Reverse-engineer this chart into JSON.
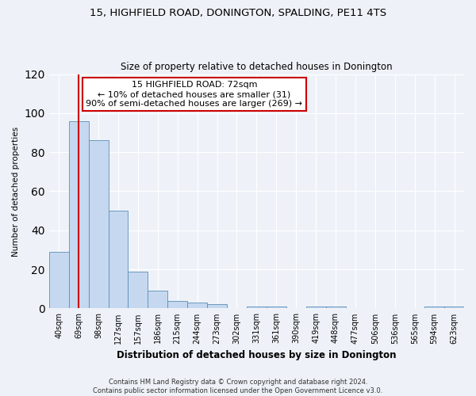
{
  "title1": "15, HIGHFIELD ROAD, DONINGTON, SPALDING, PE11 4TS",
  "title2": "Size of property relative to detached houses in Donington",
  "xlabel": "Distribution of detached houses by size in Donington",
  "ylabel": "Number of detached properties",
  "categories": [
    "40sqm",
    "69sqm",
    "98sqm",
    "127sqm",
    "157sqm",
    "186sqm",
    "215sqm",
    "244sqm",
    "273sqm",
    "302sqm",
    "331sqm",
    "361sqm",
    "390sqm",
    "419sqm",
    "448sqm",
    "477sqm",
    "506sqm",
    "536sqm",
    "565sqm",
    "594sqm",
    "623sqm"
  ],
  "values": [
    29,
    96,
    86,
    50,
    19,
    9,
    4,
    3,
    2,
    0,
    1,
    1,
    0,
    1,
    1,
    0,
    0,
    0,
    0,
    1,
    1
  ],
  "bar_color": "#c5d8f0",
  "bar_edge_color": "#5b8db8",
  "vline_x": 1,
  "vline_color": "#cc0000",
  "annotation_text": "15 HIGHFIELD ROAD: 72sqm\n← 10% of detached houses are smaller (31)\n90% of semi-detached houses are larger (269) →",
  "annotation_box_color": "#ffffff",
  "annotation_box_edge": "#cc0000",
  "ylim": [
    0,
    120
  ],
  "yticks": [
    0,
    20,
    40,
    60,
    80,
    100,
    120
  ],
  "footnote": "Contains HM Land Registry data © Crown copyright and database right 2024.\nContains public sector information licensed under the Open Government Licence v3.0.",
  "bg_color": "#eef2f8",
  "plot_bg_color": "#eef2f8",
  "title1_fontsize": 9.5,
  "title2_fontsize": 8.5,
  "ylabel_fontsize": 7.5,
  "xlabel_fontsize": 8.5,
  "tick_fontsize": 7,
  "annot_fontsize": 8,
  "footnote_fontsize": 6
}
